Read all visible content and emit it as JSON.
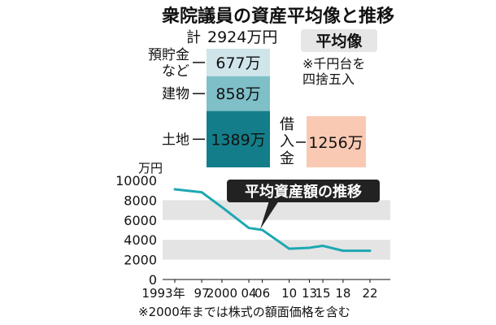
{
  "title": "衆院議員の資産平均像と推移",
  "colors": {
    "seg_top": "#cfe5ea",
    "seg_mid": "#7fbfc7",
    "seg_bottom": "#137e89",
    "loan_box": "#f9c9b4",
    "line": "#1ea8b2",
    "band": "#e4e4e4",
    "badge_bg": "#222222",
    "tag_bg": "#e6e6e6"
  },
  "breakdown": {
    "total_prefix": "計",
    "total_value": "2924万円",
    "tag": "平均像",
    "note_lines": [
      "※千円台を",
      "四捨五入"
    ],
    "segments": [
      {
        "label_lines": [
          "預貯金",
          "など"
        ],
        "value": 677,
        "text": "677万"
      },
      {
        "label_lines": [
          "建物"
        ],
        "value": 858,
        "text": "858万"
      },
      {
        "label_lines": [
          "土地"
        ],
        "value": 1389,
        "text": "1389万"
      }
    ],
    "loan": {
      "label_chars": [
        "借",
        "入",
        "金"
      ],
      "value": 1256,
      "text": "1256万"
    }
  },
  "chart_data": {
    "type": "line",
    "title": "平均資産額の推移",
    "ylabel": "万円",
    "ylim": [
      0,
      10000
    ],
    "yticks": [
      0,
      2000,
      4000,
      6000,
      8000,
      10000
    ],
    "ytick_labels": [
      "0",
      "2000",
      "4000",
      "6000",
      "8000",
      "10000"
    ],
    "x": [
      "1993",
      "1997",
      "2000",
      "2004",
      "2006",
      "2010",
      "2013",
      "2015",
      "2018",
      "2022"
    ],
    "x_labels": [
      "1993年",
      "97",
      "2000",
      "04",
      "06",
      "10",
      "13",
      "15",
      "18",
      "22"
    ],
    "series": [
      {
        "values": [
          9100,
          8800,
          7300,
          5200,
          5000,
          3100,
          3200,
          3400,
          2900,
          2900
        ]
      }
    ],
    "grid": "alternating-bands",
    "footnote": "※2000年までは株式の額面価格を含む"
  }
}
